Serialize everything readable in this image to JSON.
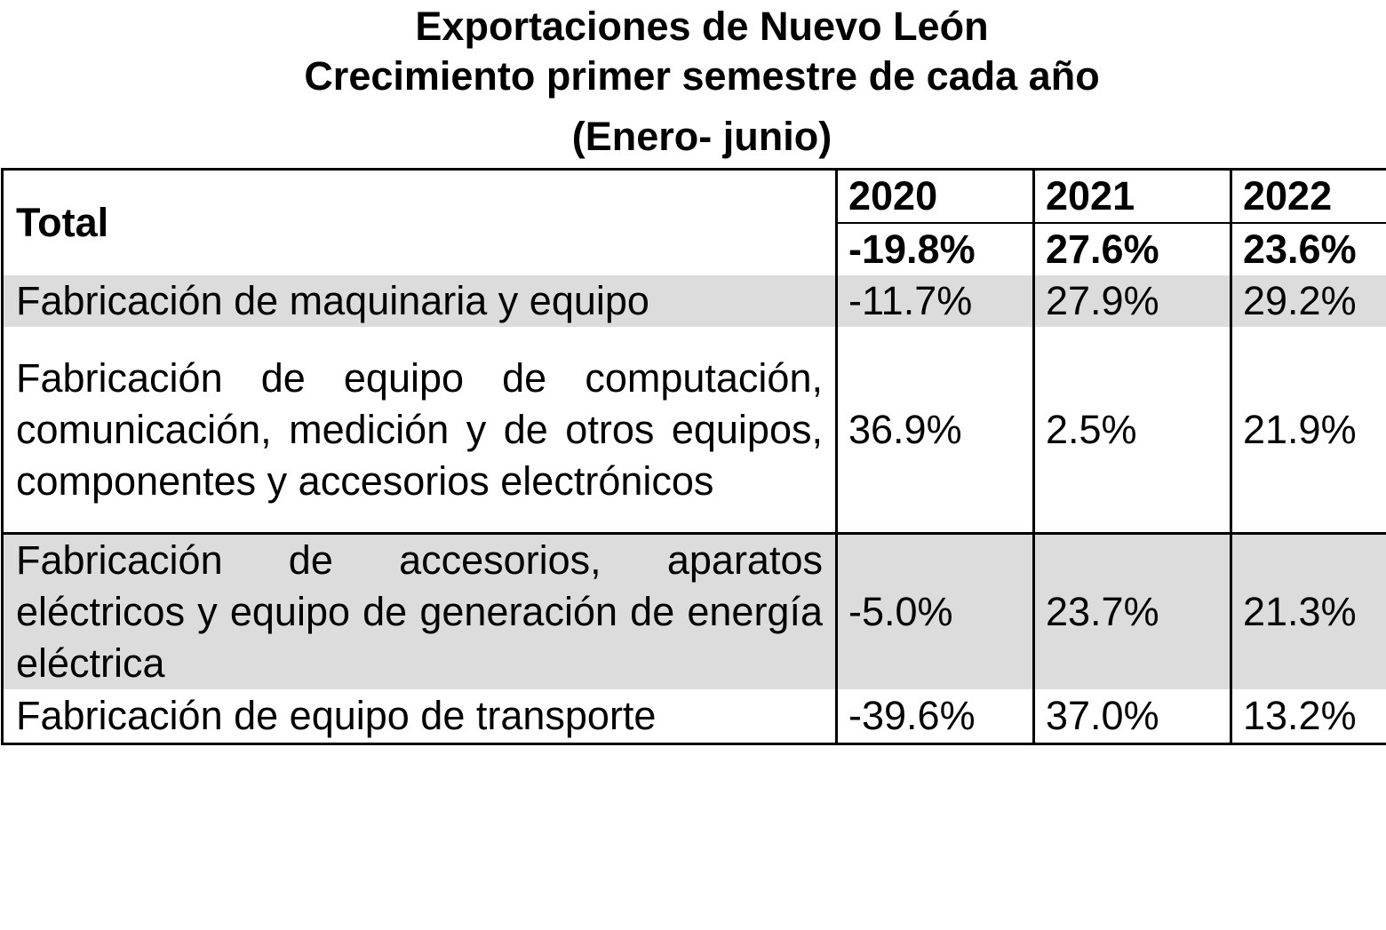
{
  "title": {
    "line1": "Exportaciones de Nuevo León",
    "line2": "Crecimiento primer semestre de cada año",
    "line3": "(Enero- junio)"
  },
  "table": {
    "total_label": "Total",
    "years": [
      "2020",
      "2021",
      "2022"
    ],
    "total_values": [
      "-19.8%",
      "27.6%",
      "23.6%"
    ],
    "rows": [
      {
        "label": "Fabricación de maquinaria y equipo",
        "values": [
          "-11.7%",
          "27.9%",
          "29.2%"
        ]
      },
      {
        "label": "Fabricación de equipo de computación, comunicación, medición y de otros equipos, componentes y accesorios electrónicos",
        "values": [
          "36.9%",
          "2.5%",
          "21.9%"
        ]
      },
      {
        "label": "Fabricación de accesorios, aparatos eléctricos y equipo de generación de energía eléctrica",
        "values": [
          "-5.0%",
          "23.7%",
          "21.3%"
        ]
      },
      {
        "label": "Fabricación de equipo de transporte",
        "values": [
          "-39.6%",
          "37.0%",
          "13.2%"
        ]
      }
    ]
  }
}
